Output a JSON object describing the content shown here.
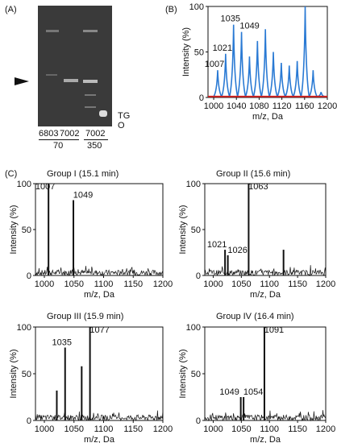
{
  "panel_a": {
    "label": "(A)",
    "lane_labels": [
      "6803",
      "7002",
      "7002"
    ],
    "dose_labels": [
      "70",
      "350"
    ],
    "marker_tg": "TG",
    "marker_o": "O"
  },
  "chart_data": [
    {
      "panel": "(B)",
      "type": "line",
      "xlabel": "m/z, Da",
      "ylabel": "Intensity (%)",
      "xlim": [
        990,
        1200
      ],
      "ylim": [
        0,
        100
      ],
      "xticks": [
        1000,
        1040,
        1080,
        1120,
        1160,
        1200
      ],
      "yticks": [
        0,
        50,
        100
      ],
      "annotations": [
        "1007",
        "1021",
        "1035",
        "1049"
      ],
      "series": [
        {
          "color": "#2a7ad4",
          "peaks": [
            [
              1007,
              30
            ],
            [
              1021,
              48
            ],
            [
              1035,
              80
            ],
            [
              1049,
              72
            ],
            [
              1063,
              45
            ],
            [
              1077,
              62
            ],
            [
              1091,
              75
            ],
            [
              1105,
              50
            ],
            [
              1119,
              38
            ],
            [
              1133,
              35
            ],
            [
              1147,
              40
            ],
            [
              1161,
              100
            ],
            [
              1175,
              30
            ],
            [
              1189,
              6
            ]
          ]
        },
        {
          "color": "#cc2222",
          "peaks": [
            [
              1000,
              1
            ],
            [
              1200,
              1
            ]
          ]
        }
      ]
    },
    {
      "panel": "(C)",
      "title": "Group I (15.1 min)",
      "type": "line",
      "xlabel": "m/z, Da",
      "ylabel": "Intensity (%)",
      "xlim": [
        985,
        1200
      ],
      "ylim": [
        0,
        100
      ],
      "xticks": [
        1000,
        1050,
        1100,
        1150,
        1200
      ],
      "yticks": [
        0,
        50,
        100
      ],
      "annotations": [
        "1007",
        "1049"
      ],
      "peaks": [
        [
          1007,
          100
        ],
        [
          1049,
          82
        ]
      ]
    },
    {
      "title": "Group II (15.6 min)",
      "type": "line",
      "xlabel": "m/z, Da",
      "ylabel": "Intensity (%)",
      "xlim": [
        985,
        1200
      ],
      "ylim": [
        0,
        100
      ],
      "xticks": [
        1000,
        1050,
        1100,
        1150,
        1200
      ],
      "yticks": [
        0,
        50,
        100
      ],
      "annotations": [
        "1021",
        "1026",
        "1063"
      ],
      "peaks": [
        [
          1021,
          28
        ],
        [
          1026,
          22
        ],
        [
          1063,
          100
        ],
        [
          1125,
          28
        ]
      ]
    },
    {
      "title": "Group III (15.9 min)",
      "type": "line",
      "xlabel": "m/z, Da",
      "ylabel": "Intensity (%)",
      "xlim": [
        985,
        1200
      ],
      "ylim": [
        0,
        100
      ],
      "xticks": [
        1000,
        1050,
        1100,
        1150,
        1200
      ],
      "yticks": [
        0,
        50,
        100
      ],
      "annotations": [
        "1035",
        "1077"
      ],
      "peaks": [
        [
          1021,
          32
        ],
        [
          1035,
          78
        ],
        [
          1063,
          58
        ],
        [
          1077,
          100
        ]
      ]
    },
    {
      "title": "Group IV (16.4 min)",
      "type": "line",
      "xlabel": "m/z, Da",
      "ylabel": "Intensity (%)",
      "xlim": [
        985,
        1200
      ],
      "ylim": [
        0,
        100
      ],
      "xticks": [
        1000,
        1050,
        1100,
        1150,
        1200
      ],
      "yticks": [
        0,
        50,
        100
      ],
      "annotations": [
        "1049",
        "1054",
        "1091"
      ],
      "peaks": [
        [
          1049,
          25
        ],
        [
          1054,
          25
        ],
        [
          1091,
          100
        ]
      ]
    }
  ]
}
